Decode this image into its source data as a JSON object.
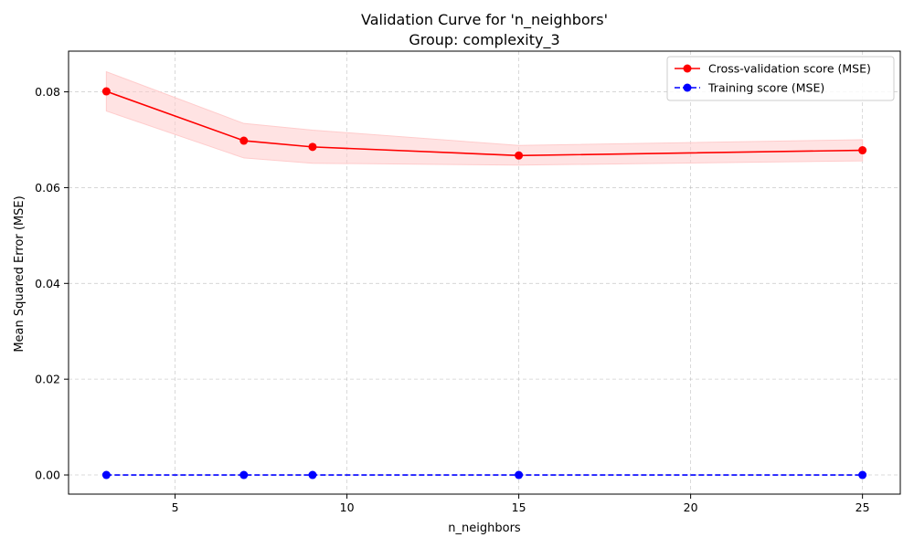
{
  "chart_data": {
    "type": "line",
    "title": "Validation Curve for 'n_neighbors'",
    "subtitle": "Group: complexity_3",
    "xlabel": "n_neighbors",
    "ylabel": "Mean Squared Error (MSE)",
    "xlim": [
      1.9,
      26.1
    ],
    "ylim": [
      -0.004,
      0.0885
    ],
    "xticks": [
      5,
      10,
      15,
      20,
      25
    ],
    "xtick_labels": [
      "5",
      "10",
      "15",
      "20",
      "25"
    ],
    "yticks": [
      0.0,
      0.02,
      0.04,
      0.06,
      0.08
    ],
    "ytick_labels": [
      "0.00",
      "0.02",
      "0.04",
      "0.06",
      "0.08"
    ],
    "grid": true,
    "legend_position": "top-right",
    "x": [
      3,
      7,
      9,
      15,
      25
    ],
    "series": [
      {
        "name": "Cross-validation score (MSE)",
        "values": [
          0.0801,
          0.0698,
          0.0685,
          0.0667,
          0.0678
        ],
        "band_upper": [
          0.0842,
          0.0734,
          0.072,
          0.0688,
          0.07
        ],
        "band_lower": [
          0.076,
          0.0662,
          0.0651,
          0.0647,
          0.0656
        ],
        "color": "#ff0000",
        "band_color": "#ffcccc",
        "linestyle": "solid",
        "marker": "circle"
      },
      {
        "name": "Training score (MSE)",
        "values": [
          0.0,
          0.0,
          0.0,
          0.0,
          0.0
        ],
        "color": "#0000ff",
        "linestyle": "dashed",
        "marker": "circle"
      }
    ]
  }
}
